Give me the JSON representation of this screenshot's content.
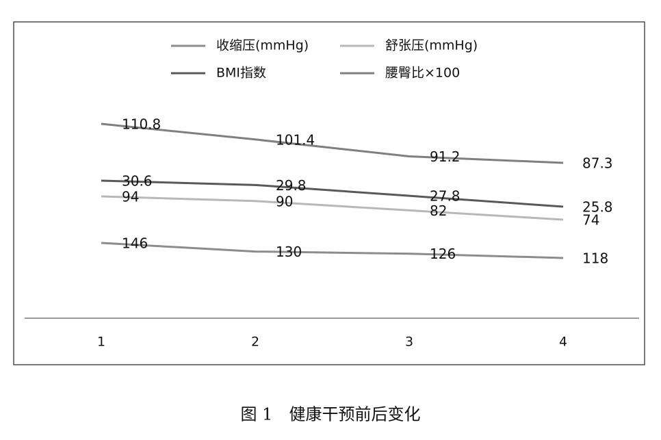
{
  "chart_data": {
    "type": "line",
    "categories": [
      "1",
      "2",
      "3",
      "4"
    ],
    "series": [
      {
        "name": "收缩压(mmHg)",
        "color": "#8c8c8c",
        "values": [
          146,
          130,
          126,
          118
        ]
      },
      {
        "name": "舒张压(mmHg)",
        "color": "#b8b8b8",
        "values": [
          94,
          90,
          82,
          74
        ]
      },
      {
        "name": "BMI指数",
        "color": "#595959",
        "values": [
          30.6,
          29.8,
          27.8,
          25.8
        ]
      },
      {
        "name": "腰臀比×100",
        "color": "#7f7f7f",
        "values": [
          110.8,
          101.4,
          91.2,
          87.3
        ]
      }
    ],
    "caption": "图 1　健康干预前后变化"
  }
}
